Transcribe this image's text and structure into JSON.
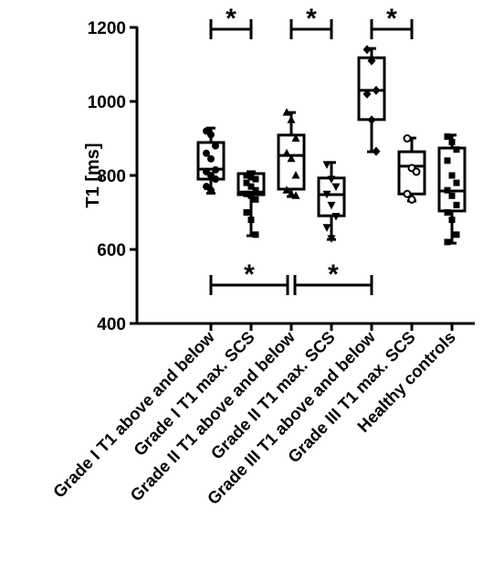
{
  "chart_data": {
    "type": "box",
    "y_label": "T1 [ms]",
    "categories": [
      "Grade I T1 above and below",
      "Grade I T1 max. SCS",
      "Grade II T1 above and below",
      "Grade II T1 max. SCS",
      "Grade III T1 above and below",
      "Grade III T1 max. SCS",
      "Healthy controls"
    ],
    "boxes": [
      {
        "min": 752,
        "q1": 790,
        "median": 817,
        "q3": 889,
        "max": 928,
        "points": [
          920,
          910,
          880,
          860,
          845,
          815,
          810,
          800,
          790,
          770,
          760
        ]
      },
      {
        "min": 637,
        "q1": 748,
        "median": 755,
        "q3": 805,
        "max": 810,
        "points": [
          800,
          795,
          790,
          780,
          770,
          760,
          750,
          745,
          735,
          700,
          680,
          640
        ]
      },
      {
        "min": 743,
        "q1": 763,
        "median": 854,
        "q3": 909,
        "max": 970,
        "points": [
          970,
          950,
          900,
          860,
          845,
          800,
          760,
          750,
          745
        ]
      },
      {
        "min": 627,
        "q1": 691,
        "median": 748,
        "q3": 793,
        "max": 835,
        "points": [
          830,
          790,
          770,
          750,
          720,
          690,
          660,
          630
        ]
      },
      {
        "min": 864,
        "q1": 951,
        "median": 1030,
        "q3": 1118,
        "max": 1143,
        "points": [
          1140,
          1110,
          1030,
          1020,
          950,
          865
        ]
      },
      {
        "min": 731,
        "q1": 750,
        "median": 825,
        "q3": 864,
        "max": 901,
        "points": [
          900,
          820,
          810,
          750,
          735
        ]
      },
      {
        "min": 617,
        "q1": 704,
        "median": 758,
        "q3": 874,
        "max": 909,
        "points": [
          905,
          890,
          870,
          840,
          800,
          780,
          760,
          745,
          720,
          700,
          680,
          640,
          620
        ]
      }
    ],
    "ylim": [
      400,
      1200
    ],
    "yticks": [
      400,
      600,
      800,
      1000,
      1200
    ],
    "annotations": [
      {
        "label": "*",
        "between": [
          0,
          1
        ],
        "position": "top"
      },
      {
        "label": "*",
        "between": [
          2,
          3
        ],
        "position": "top"
      },
      {
        "label": "*",
        "between": [
          4,
          5
        ],
        "position": "top"
      },
      {
        "label": "*",
        "between": [
          0,
          2
        ],
        "position": "bottom"
      },
      {
        "label": "*",
        "between": [
          2,
          4
        ],
        "position": "bottom"
      }
    ]
  }
}
